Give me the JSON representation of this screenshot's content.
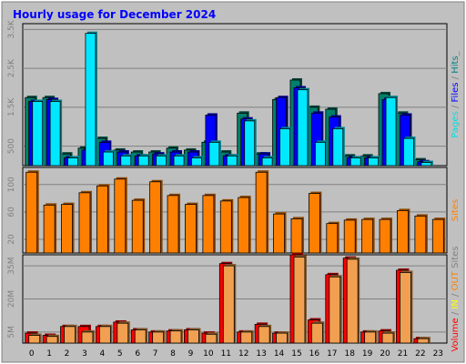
{
  "chart_data": [
    {
      "type": "bar",
      "title": "Hourly usage for December 2024",
      "side_label": [
        {
          "text": "Pages",
          "color": "#00e0e0"
        },
        {
          "text": " / ",
          "color": "#808080"
        },
        {
          "text": "Files",
          "color": "#0000ff"
        },
        {
          "text": " / ",
          "color": "#808080"
        },
        {
          "text": "Hits",
          "color": "#008080"
        },
        {
          "text": "_",
          "color": "#808080"
        }
      ],
      "categories": [
        "0",
        "1",
        "2",
        "3",
        "4",
        "5",
        "6",
        "7",
        "8",
        "9",
        "10",
        "11",
        "12",
        "13",
        "14",
        "15",
        "16",
        "17",
        "18",
        "19",
        "20",
        "21",
        "22",
        "23"
      ],
      "ylim": [
        0,
        3650
      ],
      "yticks": [
        500,
        1500,
        2500,
        3500
      ],
      "ytick_labels": [
        "500",
        "1.5K",
        "2.5K",
        "3.5K"
      ],
      "series": [
        {
          "name": "Hits",
          "color": "#00806a",
          "values": [
            1750,
            1750,
            300,
            450,
            700,
            400,
            350,
            350,
            450,
            400,
            600,
            350,
            1350,
            300,
            1700,
            2200,
            1500,
            1450,
            250,
            250,
            1850,
            1350,
            150,
            0
          ]
        },
        {
          "name": "Files",
          "color": "#0000ff",
          "values": [
            1650,
            1700,
            200,
            400,
            600,
            350,
            250,
            300,
            350,
            350,
            1300,
            250,
            1200,
            300,
            1750,
            2000,
            1350,
            1250,
            200,
            200,
            1700,
            1300,
            100,
            0
          ]
        },
        {
          "name": "Pages",
          "color": "#00e8ff",
          "values": [
            1650,
            1650,
            200,
            3400,
            350,
            250,
            250,
            250,
            250,
            200,
            600,
            250,
            1150,
            200,
            950,
            1950,
            600,
            950,
            200,
            200,
            1750,
            700,
            80,
            0
          ]
        }
      ]
    },
    {
      "type": "bar",
      "side_label": [
        {
          "text": "Sites",
          "color": "#ff8000"
        }
      ],
      "categories": [
        "0",
        "1",
        "2",
        "3",
        "4",
        "5",
        "6",
        "7",
        "8",
        "9",
        "10",
        "11",
        "12",
        "13",
        "14",
        "15",
        "16",
        "17",
        "18",
        "19",
        "20",
        "21",
        "22",
        "23"
      ],
      "ylim": [
        0,
        125
      ],
      "yticks": [
        20,
        60,
        100
      ],
      "ytick_labels": [
        "20",
        "60",
        "100"
      ],
      "series": [
        {
          "name": "Sites",
          "color": "#ff8000",
          "values": [
            118,
            70,
            71,
            88,
            98,
            108,
            77,
            104,
            84,
            71,
            84,
            76,
            81,
            118,
            57,
            50,
            87,
            43,
            48,
            49,
            49,
            62,
            54,
            49
          ]
        }
      ]
    },
    {
      "type": "bar",
      "side_label": [
        {
          "text": "Volume",
          "color": "#ff0000"
        },
        {
          "text": " / ",
          "color": "#808080"
        },
        {
          "text": "IN",
          "color": "#ffff00"
        },
        {
          "text": " / ",
          "color": "#808080"
        },
        {
          "text": "OUT",
          "color": "#ff8000"
        },
        {
          "text": " Sites",
          "color": "#808080"
        }
      ],
      "categories": [
        "0",
        "1",
        "2",
        "3",
        "4",
        "5",
        "6",
        "7",
        "8",
        "9",
        "10",
        "11",
        "12",
        "13",
        "14",
        "15",
        "16",
        "17",
        "18",
        "19",
        "20",
        "21",
        "22",
        "23"
      ],
      "ylim": [
        0,
        40
      ],
      "yticks": [
        5,
        20,
        35
      ],
      "ytick_labels": [
        "5M",
        "20M",
        "35M"
      ],
      "series": [
        {
          "name": "Volume",
          "color": "#ff0000",
          "values": [
            4.5,
            3.5,
            7.5,
            7.5,
            7.5,
            9.5,
            6,
            5,
            5.5,
            6,
            4.5,
            36,
            5,
            8.5,
            4.5,
            40,
            10.5,
            31,
            38.5,
            5,
            5.5,
            33,
            2,
            0
          ]
        },
        {
          "name": "OUT",
          "color": "#f0a050",
          "values": [
            3.5,
            3,
            7.5,
            5,
            7.5,
            9,
            6,
            5,
            5.5,
            6,
            4,
            35,
            5,
            7.5,
            4.5,
            39,
            9,
            30,
            38,
            5,
            4.5,
            32,
            2,
            0
          ]
        }
      ]
    }
  ]
}
